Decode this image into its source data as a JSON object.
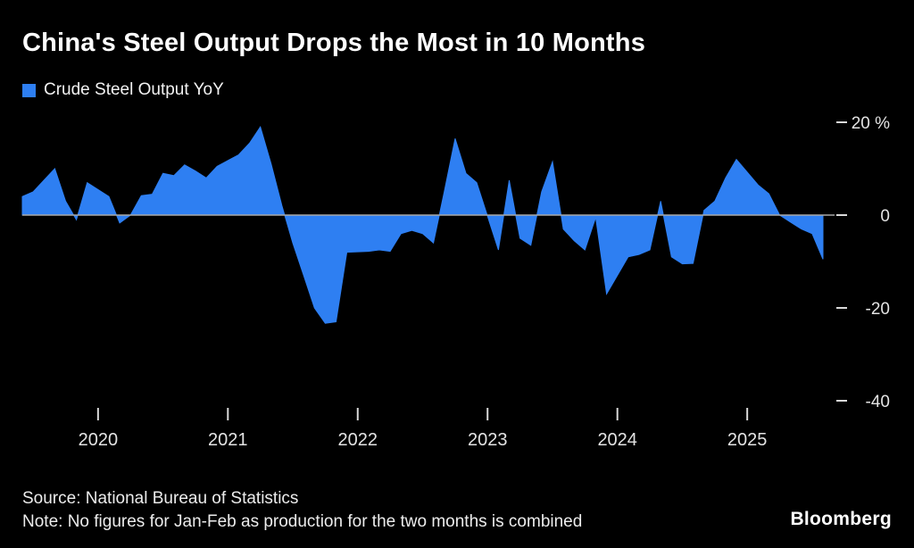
{
  "header": {
    "title": "China's Steel Output Drops the Most in 10 Months",
    "legend_label": "Crude Steel Output YoY"
  },
  "footer": {
    "source": "Source: National Bureau of Statistics",
    "note": "Note: No figures for Jan-Feb as production for the two months is combined",
    "brand": "Bloomberg"
  },
  "colors": {
    "background": "#000000",
    "series_fill": "#2e7ff2",
    "zero_line": "#a8a8a8",
    "axis_text": "#e3e3e3",
    "tick_mark": "#d9d9d9",
    "title_text": "#ffffff"
  },
  "chart_data": {
    "type": "area",
    "title": "China's Steel Output Drops the Most in 10 Months",
    "series_name": "Crude Steel Output YoY",
    "unit": "%",
    "grid": false,
    "legend_position": "top-left",
    "baseline": 0,
    "ylim": [
      -45,
      22
    ],
    "x": [
      "2019-06",
      "2019-07",
      "2019-08",
      "2019-09",
      "2019-10",
      "2019-11",
      "2019-12",
      "2020-02",
      "2020-03",
      "2020-04",
      "2020-05",
      "2020-06",
      "2020-07",
      "2020-08",
      "2020-09",
      "2020-10",
      "2020-11",
      "2020-12",
      "2021-02",
      "2021-03",
      "2021-04",
      "2021-05",
      "2021-06",
      "2021-07",
      "2021-08",
      "2021-09",
      "2021-10",
      "2021-11",
      "2021-12",
      "2022-02",
      "2022-03",
      "2022-04",
      "2022-05",
      "2022-06",
      "2022-07",
      "2022-08",
      "2022-09",
      "2022-10",
      "2022-11",
      "2022-12",
      "2023-02",
      "2023-03",
      "2023-04",
      "2023-05",
      "2023-06",
      "2023-07",
      "2023-08",
      "2023-09",
      "2023-10",
      "2023-11",
      "2023-12",
      "2024-02",
      "2024-03",
      "2024-04",
      "2024-05",
      "2024-06",
      "2024-07",
      "2024-08",
      "2024-09",
      "2024-10",
      "2024-11",
      "2024-12",
      "2025-02",
      "2025-03",
      "2025-04",
      "2025-05",
      "2025-06",
      "2025-07",
      "2025-08"
    ],
    "values": [
      4,
      5,
      7.5,
      10,
      3,
      -1,
      7,
      4,
      -1.7,
      0,
      4.2,
      4.5,
      9,
      8.5,
      10.8,
      9.5,
      8,
      10.5,
      13,
      15.5,
      19,
      11,
      2,
      -6,
      -13,
      -20,
      -23.3,
      -23,
      -8,
      -7.8,
      -7.5,
      -7.8,
      -4,
      -3.3,
      -4,
      -6,
      5,
      16.5,
      9,
      7,
      -7.5,
      7.5,
      -5,
      -6.5,
      5,
      11.5,
      -3,
      -5.5,
      -7.5,
      -0.5,
      -17,
      -9,
      -8.5,
      -7.5,
      3,
      -9,
      -10.5,
      -10.4,
      1,
      3,
      8,
      12,
      6.5,
      4.6,
      0,
      -1.5,
      -3,
      -4,
      -9.5
    ],
    "yticks": [
      {
        "value": 20,
        "label": "20 %"
      },
      {
        "value": 0,
        "label": "0"
      },
      {
        "value": -20,
        "label": "-20"
      },
      {
        "value": -40,
        "label": "-40"
      }
    ],
    "xticks": [
      {
        "date": "2020-01",
        "label": "2020"
      },
      {
        "date": "2021-01",
        "label": "2021"
      },
      {
        "date": "2022-01",
        "label": "2022"
      },
      {
        "date": "2023-01",
        "label": "2023"
      },
      {
        "date": "2024-01",
        "label": "2024"
      },
      {
        "date": "2025-01",
        "label": "2025"
      }
    ]
  }
}
